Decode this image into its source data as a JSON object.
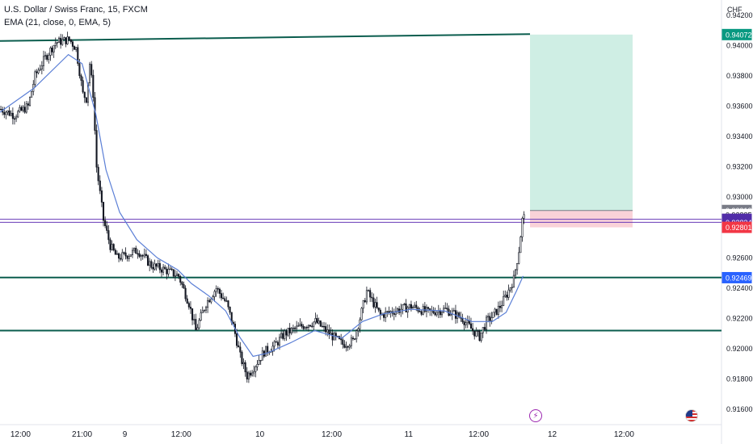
{
  "legend": {
    "title": "U.S. Dollar / Swiss Franc, 15, FXCM",
    "indicator": "EMA (21, close, 0, EMA, 5)"
  },
  "axis": {
    "currency": "CHF",
    "y_ticks": [
      "0.94200",
      "0.94000",
      "0.93800",
      "0.93600",
      "0.93400",
      "0.93200",
      "0.93000",
      "0.92600",
      "0.92400",
      "0.92200",
      "0.92000",
      "0.91800",
      "0.91600"
    ],
    "x_ticks": [
      "12:00",
      "21:00",
      "9",
      "12:00",
      "10",
      "12:00",
      "11",
      "12:00",
      "12",
      "12:00"
    ]
  },
  "price_labels": [
    {
      "text": "0.94072",
      "price": 0.94072,
      "bg": "#089981",
      "fg": "#ffffff"
    },
    {
      "text": "0.92912",
      "price": 0.92912,
      "bg": "#787b86",
      "fg": "#ffffff"
    },
    {
      "text": "0.92885",
      "price": 0.92885,
      "bg": "#ffffff",
      "fg": "#131722",
      "countdown": "13:29"
    },
    {
      "text": "0.92854",
      "price": 0.92854,
      "bg": "#512da8",
      "fg": "#ffffff"
    },
    {
      "text": "0.92834",
      "price": 0.92834,
      "bg": "#512da8",
      "fg": "#ffffff"
    },
    {
      "text": "0.92801",
      "price": 0.92801,
      "bg": "#f23645",
      "fg": "#ffffff"
    },
    {
      "text": "0.92469",
      "price": 0.92469,
      "bg": "#2962ff",
      "fg": "#ffffff"
    }
  ],
  "colors": {
    "support_line": "#0b5d4e",
    "ema": "#5b7fd6",
    "tp_zone": "#cfeee4",
    "sl_zone": "#f9d2d8",
    "candle": "#131722"
  },
  "chart_data": {
    "type": "candlestick",
    "title": "U.S. Dollar / Swiss Franc, 15, FXCM",
    "timeframe": "15",
    "ylim": [
      0.915,
      0.943
    ],
    "x_range_bars": [
      0,
      422
    ],
    "last_bar": 332,
    "y_ticks": [
      0.942,
      0.94,
      0.938,
      0.936,
      0.934,
      0.932,
      0.93,
      0.926,
      0.924,
      0.922,
      0.92,
      0.918,
      0.916
    ],
    "x_ticks": [
      {
        "bar": 12,
        "label": "12:00"
      },
      {
        "bar": 48,
        "label": "21:00"
      },
      {
        "bar": 73,
        "label": "9"
      },
      {
        "bar": 106,
        "label": "12:00"
      },
      {
        "bar": 152,
        "label": "10"
      },
      {
        "bar": 194,
        "label": "12:00"
      },
      {
        "bar": 239,
        "label": "11"
      },
      {
        "bar": 280,
        "label": "12:00"
      },
      {
        "bar": 323,
        "label": "12"
      },
      {
        "bar": 365,
        "label": "12:00"
      }
    ],
    "price_path": [
      [
        0,
        0.9358
      ],
      [
        8,
        0.9354
      ],
      [
        16,
        0.936
      ],
      [
        20,
        0.938
      ],
      [
        26,
        0.9392
      ],
      [
        32,
        0.9402
      ],
      [
        40,
        0.9404
      ],
      [
        44,
        0.9398
      ],
      [
        48,
        0.9368
      ],
      [
        50,
        0.9365
      ],
      [
        52,
        0.9388
      ],
      [
        54,
        0.9368
      ],
      [
        56,
        0.932
      ],
      [
        60,
        0.9285
      ],
      [
        64,
        0.9268
      ],
      [
        68,
        0.926
      ],
      [
        74,
        0.9262
      ],
      [
        80,
        0.9265
      ],
      [
        88,
        0.9255
      ],
      [
        96,
        0.9252
      ],
      [
        104,
        0.9248
      ],
      [
        110,
        0.923
      ],
      [
        114,
        0.9212
      ],
      [
        120,
        0.923
      ],
      [
        126,
        0.924
      ],
      [
        132,
        0.923
      ],
      [
        136,
        0.9215
      ],
      [
        140,
        0.9195
      ],
      [
        144,
        0.9182
      ],
      [
        148,
        0.9188
      ],
      [
        154,
        0.9198
      ],
      [
        160,
        0.9202
      ],
      [
        166,
        0.921
      ],
      [
        176,
        0.9215
      ],
      [
        184,
        0.9218
      ],
      [
        192,
        0.921
      ],
      [
        200,
        0.9203
      ],
      [
        206,
        0.9205
      ],
      [
        210,
        0.922
      ],
      [
        214,
        0.9238
      ],
      [
        218,
        0.923
      ],
      [
        222,
        0.9222
      ],
      [
        230,
        0.9225
      ],
      [
        240,
        0.9228
      ],
      [
        250,
        0.9224
      ],
      [
        260,
        0.9226
      ],
      [
        270,
        0.922
      ],
      [
        276,
        0.9212
      ],
      [
        280,
        0.9208
      ],
      [
        284,
        0.9218
      ],
      [
        288,
        0.9222
      ],
      [
        292,
        0.9228
      ],
      [
        296,
        0.9236
      ],
      [
        300,
        0.9246
      ],
      [
        303,
        0.9265
      ],
      [
        305,
        0.9285
      ],
      [
        306,
        0.92885
      ]
    ],
    "ema_path": [
      [
        0,
        0.9356
      ],
      [
        20,
        0.9372
      ],
      [
        40,
        0.9394
      ],
      [
        48,
        0.9388
      ],
      [
        56,
        0.9355
      ],
      [
        62,
        0.9318
      ],
      [
        70,
        0.929
      ],
      [
        80,
        0.9272
      ],
      [
        92,
        0.926
      ],
      [
        104,
        0.9252
      ],
      [
        112,
        0.9243
      ],
      [
        122,
        0.9235
      ],
      [
        132,
        0.9225
      ],
      [
        140,
        0.9208
      ],
      [
        148,
        0.9195
      ],
      [
        156,
        0.9197
      ],
      [
        170,
        0.9204
      ],
      [
        184,
        0.9212
      ],
      [
        200,
        0.9207
      ],
      [
        212,
        0.9218
      ],
      [
        224,
        0.9223
      ],
      [
        240,
        0.9226
      ],
      [
        260,
        0.9225
      ],
      [
        276,
        0.9218
      ],
      [
        288,
        0.9218
      ],
      [
        296,
        0.9224
      ],
      [
        302,
        0.9238
      ],
      [
        306,
        0.9248
      ]
    ],
    "lines": [
      {
        "name": "trendline",
        "x1": 0,
        "y1": 0.9403,
        "x2": 310,
        "y2": 0.94075
      },
      {
        "name": "support-upper",
        "price": 0.9247
      },
      {
        "name": "support-lower",
        "price": 0.9212
      },
      {
        "name": "level-1",
        "price": 0.92854
      },
      {
        "name": "level-2",
        "price": 0.92834
      }
    ],
    "position": {
      "entry": 0.92912,
      "target": 0.94072,
      "stop": 0.92801,
      "x_start": 310,
      "x_end": 370
    }
  }
}
